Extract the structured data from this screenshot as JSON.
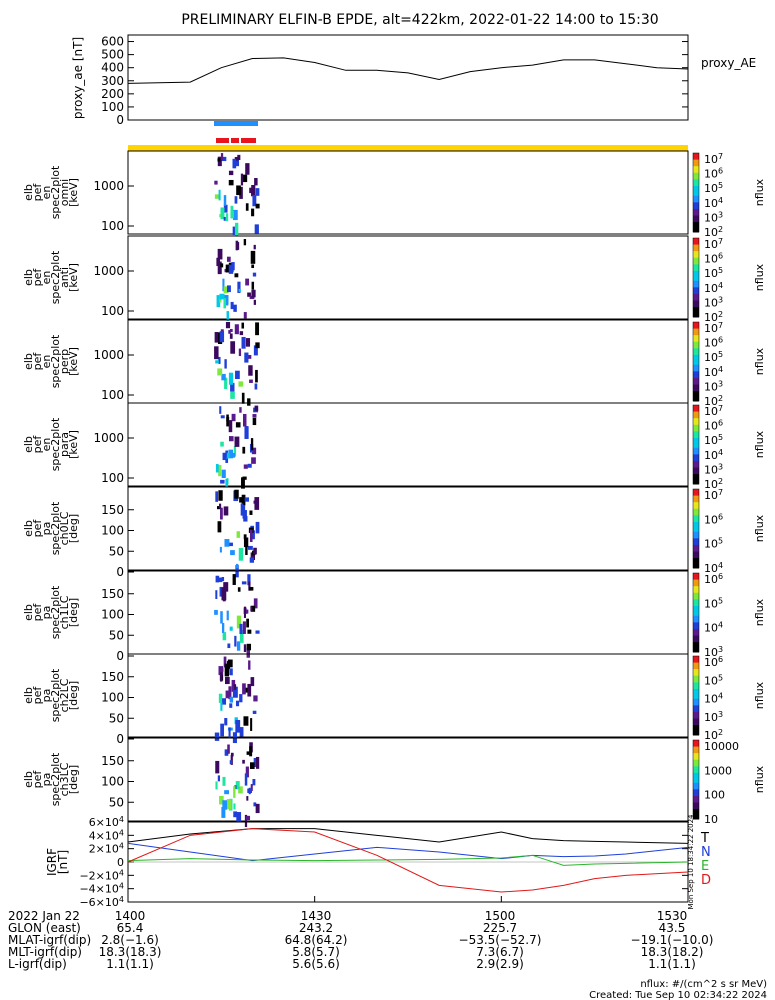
{
  "title": "PRELIMINARY ELFIN-B EPDE, alt=422km, 2022-01-22 14:00 to 15:30",
  "colors": {
    "yellow_bar": "#ffd400",
    "blue_bar": "#1e90ff",
    "red_bar": "#e8141e"
  },
  "proxy_ae": {
    "ylabel": "proxy_ae [nT]",
    "legend": "proxy_AE",
    "ticks": [
      "600",
      "500",
      "400",
      "300",
      "200",
      "100",
      "0"
    ],
    "tick_values": [
      600,
      500,
      400,
      300,
      200,
      100,
      0
    ],
    "ylim": [
      0,
      650
    ]
  },
  "spec_panels": [
    {
      "ylabel": [
        "elb",
        "pef",
        "en",
        "spec2plot",
        "omni",
        "[keV]"
      ],
      "ticks": [
        "1000",
        "100"
      ],
      "cbar_ticks": [
        "10^7",
        "10^6",
        "10^5",
        "10^4",
        "10^3",
        "10^2"
      ],
      "cbar_label": "nflux"
    },
    {
      "ylabel": [
        "elb",
        "pef",
        "en",
        "spec2plot",
        "anti",
        "[keV]"
      ],
      "ticks": [
        "1000",
        "100"
      ],
      "cbar_ticks": [
        "10^7",
        "10^6",
        "10^5",
        "10^4",
        "10^3",
        "10^2"
      ],
      "cbar_label": "nflux"
    },
    {
      "ylabel": [
        "elb",
        "pef",
        "en",
        "spec2plot",
        "perp",
        "[keV]"
      ],
      "ticks": [
        "1000",
        "100"
      ],
      "cbar_ticks": [
        "10^7",
        "10^6",
        "10^5",
        "10^4",
        "10^3",
        "10^2"
      ],
      "cbar_label": "nflux"
    },
    {
      "ylabel": [
        "elb",
        "pef",
        "en",
        "spec2plot",
        "para",
        "[keV]"
      ],
      "ticks": [
        "1000",
        "100"
      ],
      "cbar_ticks": [
        "10^7",
        "10^6",
        "10^5",
        "10^4",
        "10^3",
        "10^2"
      ],
      "cbar_label": "nflux"
    },
    {
      "ylabel": [
        "elb",
        "pef",
        "pa",
        "spec2plot",
        "ch0LC",
        "[deg]"
      ],
      "ticks": [
        "150",
        "100",
        "50",
        "0"
      ],
      "cbar_ticks": [
        "10^7",
        "10^6",
        "10^5",
        "10^4"
      ],
      "cbar_label": "nflux"
    },
    {
      "ylabel": [
        "elb",
        "pef",
        "pa",
        "spec2plot",
        "ch1LC",
        "[deg]"
      ],
      "ticks": [
        "150",
        "100",
        "50",
        "0"
      ],
      "cbar_ticks": [
        "10^6",
        "10^5",
        "10^4",
        "10^3"
      ],
      "cbar_label": "nflux"
    },
    {
      "ylabel": [
        "elb",
        "pef",
        "pa",
        "spec2plot",
        "ch2LC",
        "[deg]"
      ],
      "ticks": [
        "150",
        "100",
        "50",
        "0"
      ],
      "cbar_ticks": [
        "10^6",
        "10^5",
        "10^4",
        "10^3",
        "10^2"
      ],
      "cbar_label": "nflux"
    },
    {
      "ylabel": [
        "elb",
        "pef",
        "pa",
        "spec2plot",
        "ch3LC",
        "[deg]"
      ],
      "ticks": [
        "150",
        "100",
        "50"
      ],
      "cbar_ticks": [
        "10000",
        "1000",
        "100",
        "10"
      ],
      "cbar_label": "nflux"
    }
  ],
  "igrf": {
    "ylabel": [
      "IGRF",
      "[nT]"
    ],
    "ticks": [
      "6×10^4",
      "4×10^4",
      "2×10^4",
      "0",
      "−2×10^4",
      "−4×10^4",
      "−6×10^4"
    ],
    "tick_values": [
      60000,
      40000,
      20000,
      0,
      -20000,
      -40000,
      -60000
    ],
    "legend": [
      {
        "name": "T",
        "color": "#000000"
      },
      {
        "name": "N",
        "color": "#1f3fd8"
      },
      {
        "name": "E",
        "color": "#2bb52b"
      },
      {
        "name": "D",
        "color": "#e01818"
      }
    ],
    "side_text": "Mon Sep 10 18:34:22 2024"
  },
  "footer": {
    "rows": [
      [
        "2022 Jan 22",
        "1400",
        "1430",
        "1500",
        "1530"
      ],
      [
        "GLON (east)",
        "65.4",
        "243.2",
        "225.7",
        "43.5"
      ],
      [
        "MLAT-igrf(dip)",
        "2.8(−1.6)",
        "64.8(64.2)",
        "−53.5(−52.7)",
        "−19.1(−10.0)"
      ],
      [
        "MLT-igrf(dip)",
        "18.3(18.3)",
        "5.8(5.7)",
        "7.3(6.7)",
        "18.3(18.2)"
      ],
      [
        "L-igrf(dip)",
        "1.1(1.1)",
        "5.6(5.6)",
        "2.9(2.9)",
        "1.1(1.1)"
      ]
    ],
    "units": "nflux: #/(cm^2 s sr MeV)",
    "created": "Created: Tue Sep 10 02:34:22 2024"
  },
  "chart_data": {
    "type": "line",
    "x_start_hhmm": "1400",
    "x_end_hhmm": "1530",
    "x_minutes": [
      0,
      10,
      15,
      20,
      25,
      30,
      35,
      40,
      45,
      50,
      55,
      60,
      65,
      70,
      75,
      80,
      85,
      90
    ],
    "series": [
      {
        "name": "proxy_AE",
        "values": [
          280,
          290,
          400,
          470,
          475,
          440,
          380,
          380,
          360,
          310,
          370,
          400,
          420,
          460,
          460,
          430,
          400,
          390
        ]
      }
    ],
    "igrf_x_minutes": [
      0,
      10,
      20,
      30,
      40,
      50,
      60,
      65,
      70,
      75,
      80,
      90
    ],
    "igrf_series": [
      {
        "name": "T",
        "values": [
          30000,
          42000,
          50000,
          50000,
          40000,
          30000,
          45000,
          35000,
          32000,
          31000,
          30000,
          28000
        ]
      },
      {
        "name": "N",
        "values": [
          28000,
          15000,
          2000,
          12000,
          22000,
          15000,
          5000,
          10000,
          8000,
          9000,
          12000,
          22000
        ]
      },
      {
        "name": "E",
        "values": [
          2000,
          5000,
          3000,
          2000,
          3000,
          4000,
          6000,
          10000,
          -5000,
          -3000,
          -2000,
          0
        ]
      },
      {
        "name": "D",
        "values": [
          0,
          40000,
          50000,
          45000,
          10000,
          -35000,
          -45000,
          -42000,
          -35000,
          -25000,
          -20000,
          -15000
        ]
      }
    ]
  }
}
